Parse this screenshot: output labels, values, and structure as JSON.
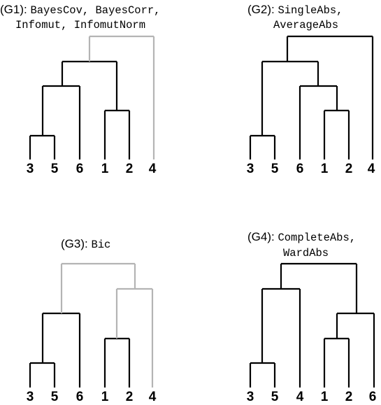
{
  "panels": [
    {
      "id": "G1",
      "title_prefix": "(G1): ",
      "title_lines": [
        "BayesCov, BayesCorr,",
        "Infomut, InfomutNorm"
      ],
      "leaves": [
        "3",
        "5",
        "6",
        "1",
        "2",
        "4"
      ]
    },
    {
      "id": "G2",
      "title_prefix": "(G2): ",
      "title_lines": [
        "SingleAbs,",
        "AverageAbs"
      ],
      "leaves": [
        "3",
        "5",
        "6",
        "1",
        "2",
        "4"
      ]
    },
    {
      "id": "G3",
      "title_prefix": "(G3): ",
      "title_lines": [
        "Bic"
      ],
      "leaves": [
        "3",
        "5",
        "6",
        "1",
        "2",
        "4"
      ]
    },
    {
      "id": "G4",
      "title_prefix": "(G4): ",
      "title_lines": [
        "CompleteAbs,",
        "WardAbs"
      ],
      "leaves": [
        "3",
        "5",
        "4",
        "1",
        "2",
        "6"
      ]
    }
  ],
  "colors": {
    "branch": "#000000",
    "highlight_branch": "#b4b4b4"
  }
}
